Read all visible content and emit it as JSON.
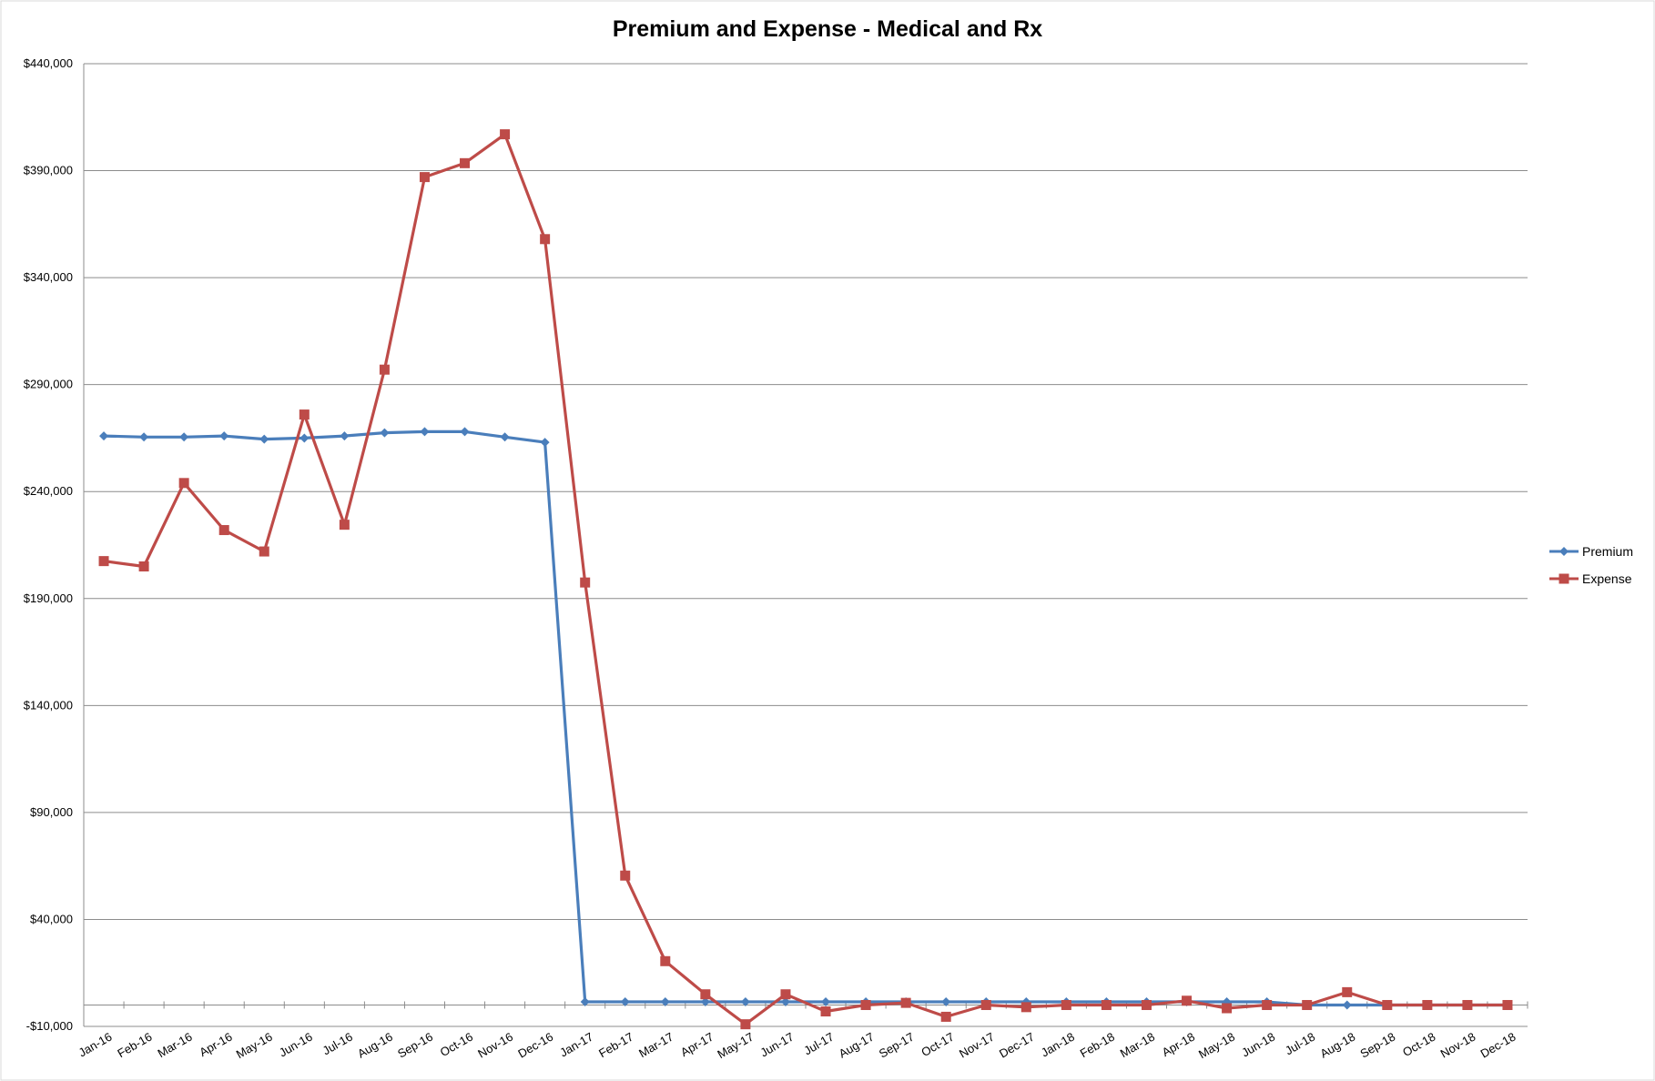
{
  "chart_data": {
    "type": "line",
    "title": "Premium and Expense - Medical and Rx",
    "xlabel": "",
    "ylabel": "",
    "ylim": [
      -10000,
      440000
    ],
    "yticks": [
      "$440,000",
      "$390,000",
      "$340,000",
      "$290,000",
      "$240,000",
      "$190,000",
      "$140,000",
      "$90,000",
      "$40,000",
      "-$10,000"
    ],
    "grid": true,
    "legend_position": "right",
    "categories": [
      "Jan-16",
      "Feb-16",
      "Mar-16",
      "Apr-16",
      "May-16",
      "Jun-16",
      "Jul-16",
      "Aug-16",
      "Sep-16",
      "Oct-16",
      "Nov-16",
      "Dec-16",
      "Jan-17",
      "Feb-17",
      "Mar-17",
      "Apr-17",
      "May-17",
      "Jun-17",
      "Jul-17",
      "Aug-17",
      "Sep-17",
      "Oct-17",
      "Nov-17",
      "Dec-17",
      "Jan-18",
      "Feb-18",
      "Mar-18",
      "Apr-18",
      "May-18",
      "Jun-18",
      "Jul-18",
      "Aug-18",
      "Sep-18",
      "Oct-18",
      "Nov-18",
      "Dec-18"
    ],
    "series": [
      {
        "name": "Premium",
        "color": "#4a7ebb",
        "marker": "diamond",
        "values": [
          266000,
          265500,
          265500,
          266000,
          264500,
          265000,
          266000,
          267500,
          268000,
          268000,
          265500,
          263000,
          1500,
          1500,
          1500,
          1500,
          1500,
          1500,
          1500,
          1500,
          1500,
          1500,
          1500,
          1500,
          1500,
          1500,
          1500,
          1500,
          1500,
          1500,
          0,
          0,
          0,
          0,
          0,
          0
        ]
      },
      {
        "name": "Expense",
        "color": "#be4b48",
        "marker": "square",
        "values": [
          207500,
          205000,
          244000,
          222000,
          212000,
          276000,
          224500,
          297000,
          387000,
          393500,
          407000,
          358000,
          197500,
          60500,
          20500,
          5000,
          -9000,
          5000,
          -3000,
          0,
          1000,
          -5500,
          0,
          -1000,
          0,
          0,
          0,
          2000,
          -1500,
          0,
          0,
          6000,
          0,
          0,
          0,
          0
        ]
      }
    ]
  }
}
